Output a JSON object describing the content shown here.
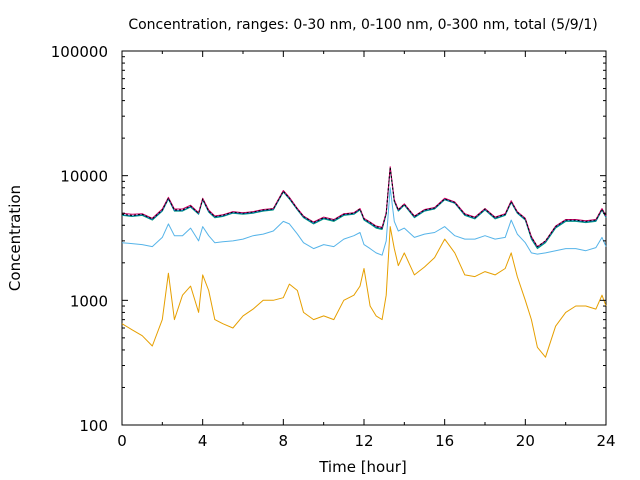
{
  "chart_data": {
    "type": "line",
    "title": "Concentration, ranges: 0-30 nm, 0-100 nm, 0-300 nm, total (5/9/1)",
    "xlabel": "Time [hour]",
    "ylabel": "Concentration",
    "xlim": [
      0,
      24
    ],
    "ylim": [
      100,
      100000
    ],
    "yscale": "log",
    "grid": false,
    "x_ticks": [
      0,
      4,
      8,
      12,
      16,
      20,
      24
    ],
    "x_tick_labels": [
      "0",
      "4",
      "8",
      "12",
      "16",
      "20",
      "24"
    ],
    "y_ticks": [
      100,
      1000,
      10000,
      100000
    ],
    "y_tick_labels": [
      "100",
      "1000",
      "10000",
      "100000"
    ],
    "x": [
      0,
      0.5,
      1,
      1.5,
      2,
      2.3,
      2.6,
      3,
      3.4,
      3.8,
      4,
      4.3,
      4.6,
      5,
      5.5,
      6,
      6.5,
      7,
      7.5,
      8,
      8.3,
      8.7,
      9,
      9.5,
      10,
      10.5,
      11,
      11.5,
      11.8,
      12,
      12.3,
      12.6,
      12.9,
      13.1,
      13.3,
      13.5,
      13.7,
      14,
      14.5,
      15,
      15.5,
      16,
      16.5,
      17,
      17.5,
      18,
      18.5,
      19,
      19.3,
      19.6,
      20,
      20.3,
      20.6,
      21,
      21.5,
      22,
      22.5,
      23,
      23.5,
      23.8,
      24
    ],
    "series": [
      {
        "color": "#E69F00",
        "values": [
          650,
          580,
          520,
          430,
          700,
          1650,
          700,
          1100,
          1300,
          800,
          1600,
          1200,
          700,
          650,
          600,
          750,
          850,
          1000,
          1000,
          1050,
          1350,
          1200,
          800,
          700,
          750,
          700,
          1000,
          1100,
          1300,
          1800,
          900,
          750,
          700,
          1100,
          3900,
          2600,
          1900,
          2400,
          1600,
          1850,
          2200,
          3100,
          2400,
          1600,
          1550,
          1700,
          1600,
          1800,
          2400,
          1550,
          1000,
          700,
          420,
          350,
          620,
          800,
          900,
          900,
          850,
          1100,
          900
        ]
      },
      {
        "color": "#56B4E9",
        "values": [
          2900,
          2850,
          2800,
          2700,
          3200,
          4100,
          3300,
          3300,
          3800,
          3000,
          3900,
          3300,
          2900,
          2950,
          3000,
          3100,
          3300,
          3400,
          3600,
          4300,
          4100,
          3400,
          2900,
          2600,
          2800,
          2700,
          3100,
          3300,
          3500,
          2800,
          2600,
          2400,
          2300,
          3000,
          8000,
          4300,
          3600,
          3800,
          3200,
          3400,
          3500,
          3900,
          3300,
          3100,
          3100,
          3300,
          3100,
          3200,
          4400,
          3400,
          2900,
          2400,
          2350,
          2400,
          2500,
          2600,
          2600,
          2500,
          2650,
          3200,
          2700
        ]
      },
      {
        "color": "#009E73",
        "values": [
          4800,
          4700,
          4800,
          4400,
          5200,
          6500,
          5200,
          5200,
          5600,
          4900,
          6400,
          5100,
          4600,
          4700,
          5000,
          4900,
          5000,
          5200,
          5300,
          7400,
          6500,
          5300,
          4600,
          4100,
          4500,
          4300,
          4800,
          4900,
          5300,
          4400,
          4100,
          3800,
          3700,
          4900,
          11500,
          6200,
          5200,
          5800,
          4600,
          5200,
          5400,
          6400,
          6000,
          4800,
          4500,
          5300,
          4500,
          4800,
          6100,
          5000,
          4400,
          3100,
          2600,
          2900,
          3800,
          4300,
          4300,
          4200,
          4300,
          5300,
          4600
        ]
      },
      {
        "color": "#0072B2",
        "values": [
          4850,
          4750,
          4850,
          4450,
          5250,
          6550,
          5250,
          5250,
          5650,
          4950,
          6450,
          5150,
          4650,
          4750,
          5050,
          4950,
          5050,
          5250,
          5350,
          7450,
          6550,
          5350,
          4650,
          4150,
          4550,
          4350,
          4850,
          4950,
          5350,
          4450,
          4150,
          3850,
          3750,
          4950,
          11600,
          6250,
          5250,
          5850,
          4650,
          5250,
          5450,
          6450,
          6050,
          4850,
          4550,
          5350,
          4550,
          4850,
          6150,
          5050,
          4450,
          3150,
          2650,
          2950,
          3850,
          4350,
          4350,
          4250,
          4350,
          5350,
          4650
        ]
      },
      {
        "color": "#CC0066",
        "values": [
          5000,
          4900,
          4950,
          4550,
          5400,
          6700,
          5400,
          5400,
          5800,
          5050,
          6600,
          5300,
          4750,
          4850,
          5150,
          5050,
          5150,
          5350,
          5450,
          7600,
          6700,
          5450,
          4750,
          4250,
          4650,
          4450,
          4950,
          5050,
          5450,
          4550,
          4250,
          3950,
          3850,
          5050,
          11800,
          6400,
          5350,
          5950,
          4750,
          5350,
          5550,
          6600,
          6150,
          4950,
          4650,
          5450,
          4650,
          4950,
          6300,
          5150,
          4550,
          3250,
          2700,
          3000,
          3950,
          4450,
          4450,
          4350,
          4450,
          5450,
          4750
        ]
      },
      {
        "color": "#000000",
        "dashed": true,
        "values": [
          4900,
          4800,
          4900,
          4500,
          5300,
          6600,
          5300,
          5300,
          5700,
          5000,
          6500,
          5200,
          4700,
          4800,
          5100,
          5000,
          5100,
          5300,
          5400,
          7500,
          6600,
          5400,
          4700,
          4200,
          4600,
          4400,
          4900,
          5000,
          5400,
          4500,
          4200,
          3900,
          3800,
          5000,
          11700,
          6300,
          5300,
          5900,
          4700,
          5300,
          5500,
          6500,
          6100,
          4900,
          4600,
          5400,
          4600,
          4900,
          6200,
          5100,
          4500,
          3200,
          2700,
          3000,
          3900,
          4400,
          4400,
          4300,
          4400,
          5400,
          4700
        ]
      }
    ]
  }
}
